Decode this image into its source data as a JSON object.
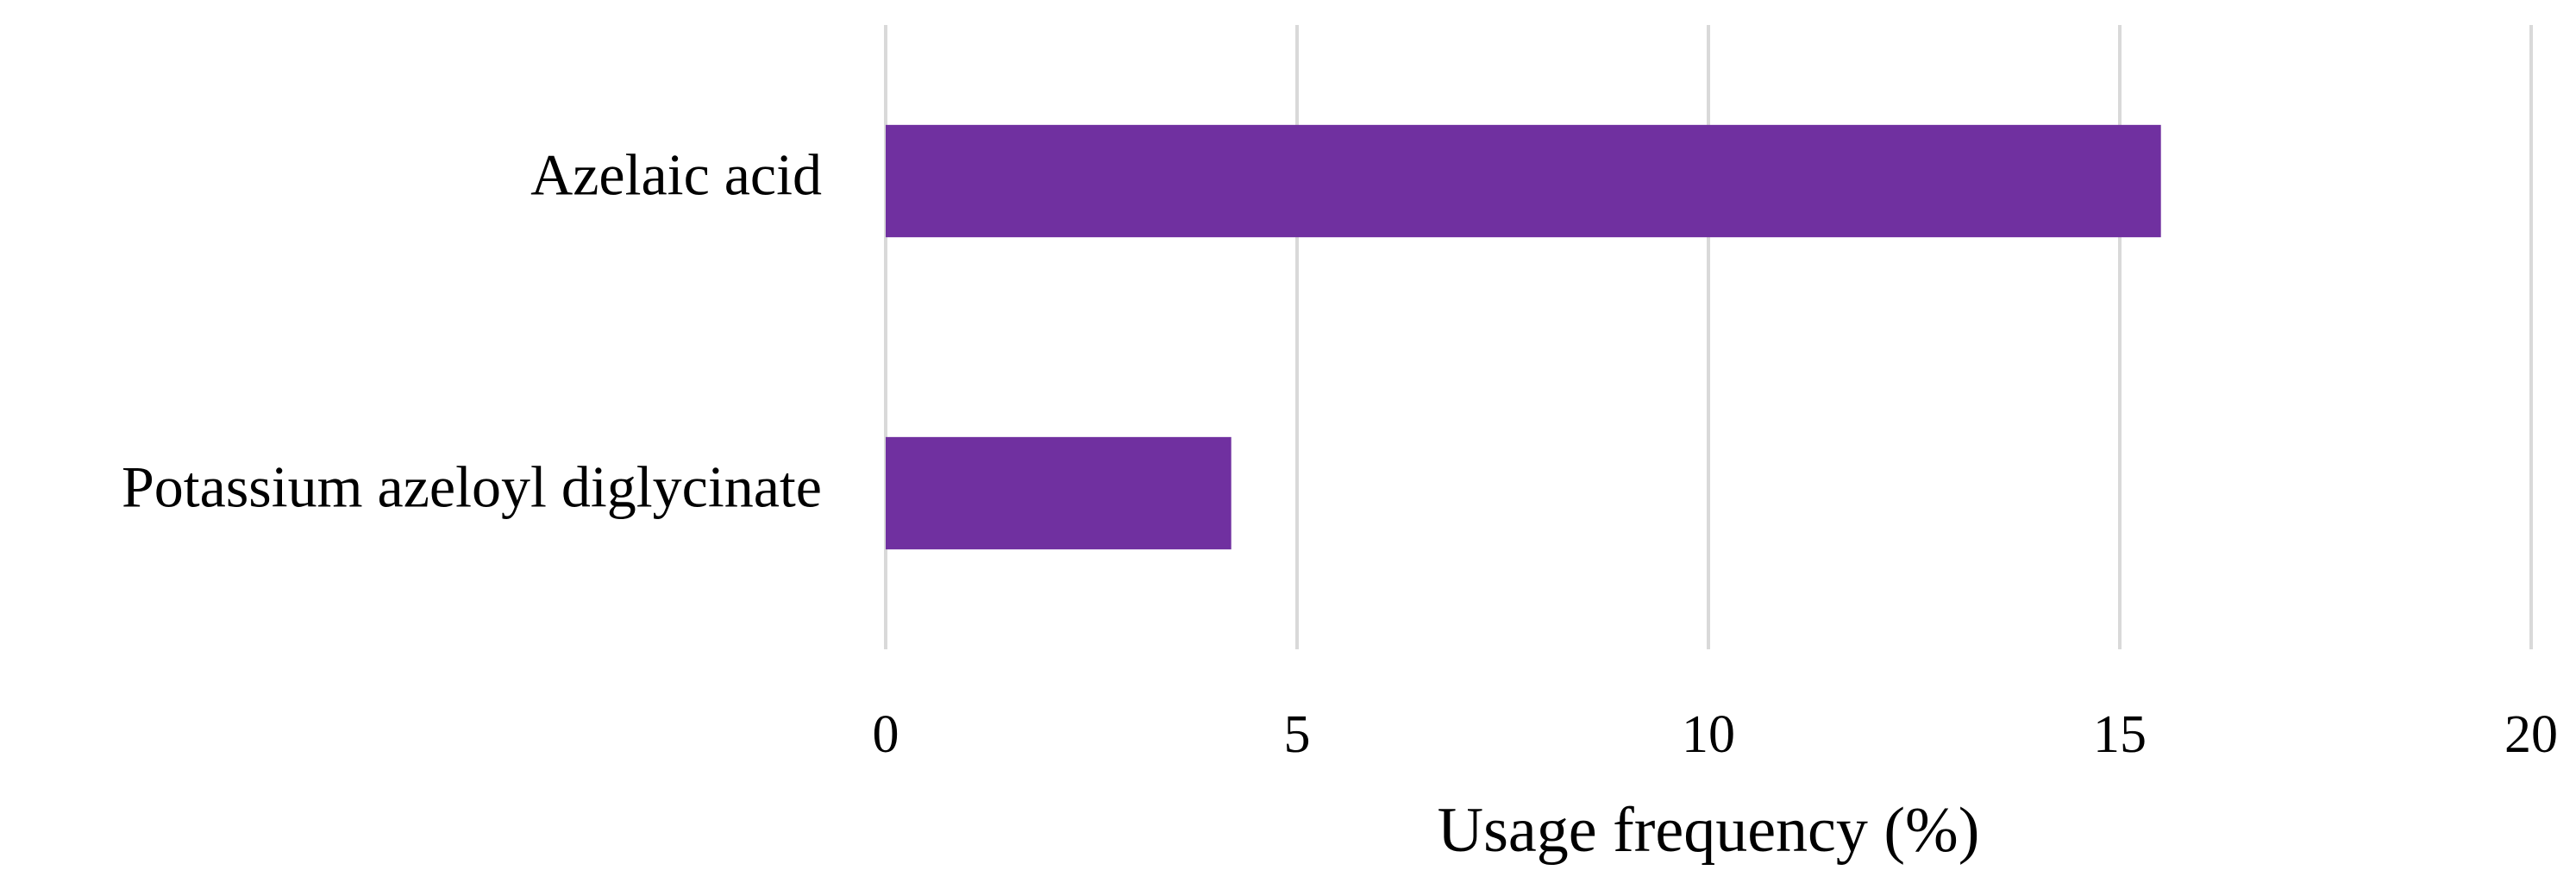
{
  "chart_data": {
    "type": "hbar",
    "categories": [
      "Azelaic acid",
      "Potassium azeloyl diglycinate"
    ],
    "values": [
      15.5,
      4.2
    ],
    "color": "#7030a0",
    "xlabel": "Usage frequency (%)",
    "xlim": [
      0,
      20
    ],
    "xticks": [
      0,
      5,
      10,
      15,
      20
    ],
    "grid": true
  }
}
